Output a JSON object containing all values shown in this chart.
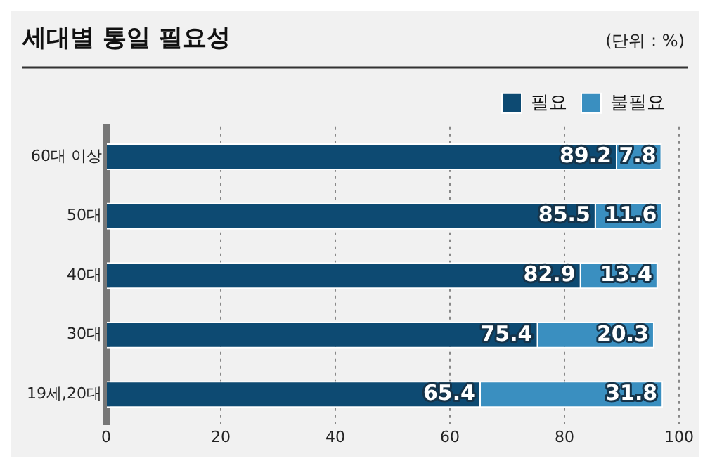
{
  "chart_data": {
    "type": "bar",
    "title": "세대별 통일 필요성",
    "annotations": [
      "(단위 : %)"
    ],
    "orientation": "horizontal",
    "stacked": true,
    "categories": [
      "60대 이상",
      "50대",
      "40대",
      "30대",
      "19세,20대"
    ],
    "series": [
      {
        "name": "필요",
        "color": "#0d4a72",
        "values": [
          89.2,
          85.5,
          82.9,
          75.4,
          65.4
        ]
      },
      {
        "name": "불필요",
        "color": "#3a8fc0",
        "values": [
          7.8,
          11.6,
          13.4,
          20.3,
          31.8
        ]
      }
    ],
    "xlim": [
      0,
      100
    ],
    "xticks": [
      0,
      20,
      40,
      60,
      80,
      100
    ],
    "grid": "x",
    "legend": "top right",
    "data_labels": true
  }
}
